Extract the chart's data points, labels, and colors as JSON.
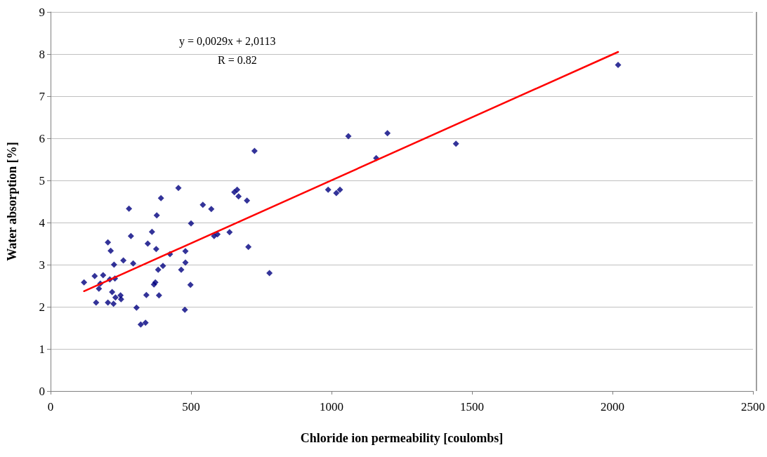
{
  "chart_data": {
    "type": "scatter",
    "xlabel": "Chloride ion permeability [coulombs]",
    "ylabel": "Water absorption [%]",
    "annotations": [
      "y = 0,0029x + 2,0113",
      "R = 0.82"
    ],
    "xlim": [
      0,
      2500
    ],
    "xticks": [
      0,
      500,
      1000,
      1500,
      2000,
      2500
    ],
    "ylim": [
      0,
      9
    ],
    "yticks": [
      0,
      1,
      2,
      3,
      4,
      5,
      6,
      7,
      8,
      9
    ],
    "grid": "y",
    "marker": "diamond",
    "series": [
      {
        "color": "#000080",
        "x": [
          119,
          157,
          162,
          172,
          177,
          187,
          204,
          204,
          214,
          211,
          219,
          224,
          226,
          229,
          231,
          249,
          251,
          259,
          279,
          286,
          294,
          306,
          321,
          338,
          341,
          346,
          361,
          368,
          373,
          376,
          378,
          383,
          386,
          393,
          400,
          425,
          455,
          465,
          478,
          480,
          480,
          498,
          500,
          542,
          572,
          582,
          594,
          637,
          654,
          664,
          669,
          699,
          704,
          726,
          779,
          988,
          1017,
          1030,
          1060,
          1159,
          1199,
          1443,
          2020
        ],
        "values": [
          2.58,
          2.73,
          2.1,
          2.43,
          2.55,
          2.75,
          3.53,
          2.1,
          3.33,
          2.65,
          2.35,
          2.07,
          3.0,
          2.67,
          2.22,
          2.27,
          2.18,
          3.1,
          4.33,
          3.68,
          3.03,
          1.98,
          1.58,
          1.62,
          2.28,
          3.5,
          3.78,
          2.53,
          2.58,
          3.37,
          4.17,
          2.88,
          2.27,
          4.58,
          2.97,
          3.25,
          4.82,
          2.88,
          1.93,
          3.32,
          3.05,
          2.52,
          3.98,
          4.42,
          4.32,
          3.68,
          3.72,
          3.77,
          4.72,
          4.78,
          4.62,
          4.52,
          3.42,
          5.7,
          2.8,
          4.78,
          4.7,
          4.78,
          6.05,
          5.53,
          6.12,
          5.87,
          7.74
        ]
      },
      {
        "type": "line",
        "color": "#ff0000",
        "x": [
          119,
          2020
        ],
        "values": [
          2.37,
          8.05
        ],
        "marker": "none",
        "line_style": "solid"
      }
    ]
  }
}
